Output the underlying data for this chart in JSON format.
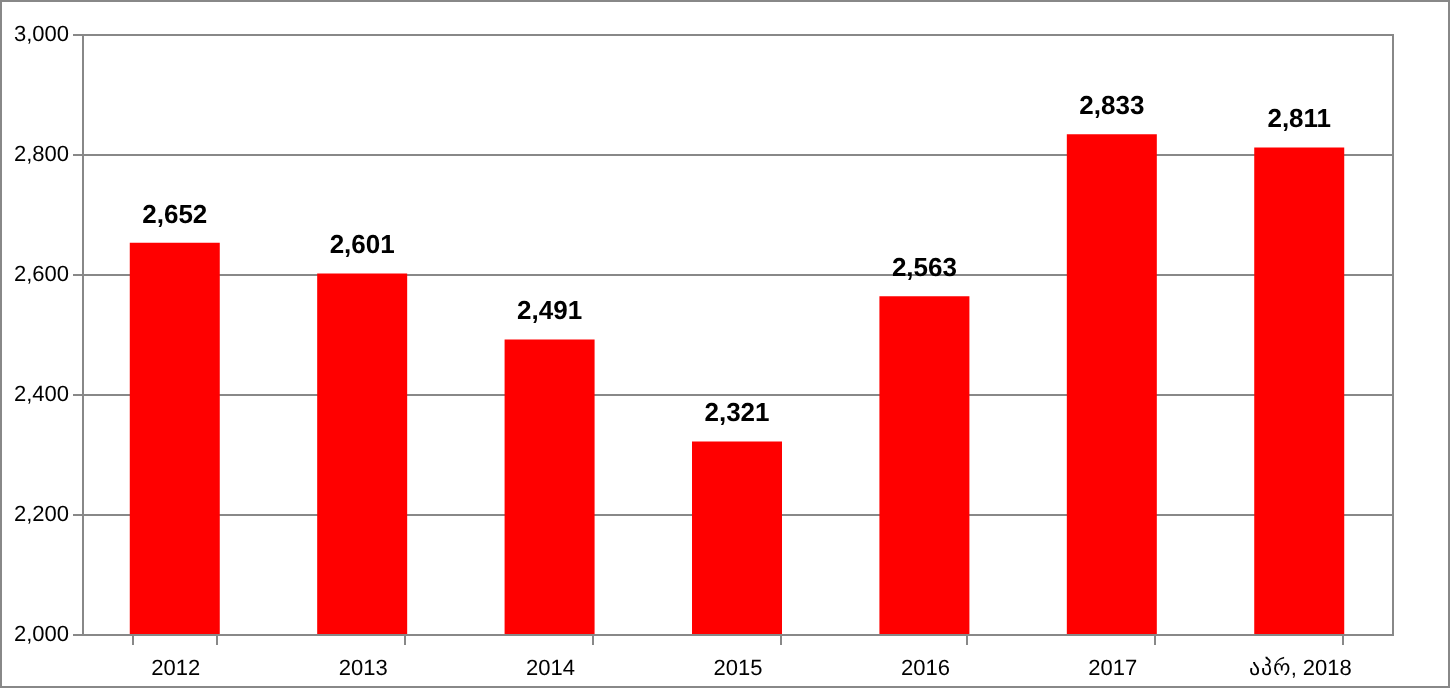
{
  "chart_data": {
    "type": "bar",
    "categories": [
      "2012",
      "2013",
      "2014",
      "2015",
      "2016",
      "2017",
      "აპრ, 2018"
    ],
    "values": [
      2652,
      2601,
      2491,
      2321,
      2563,
      2833,
      2811
    ],
    "color": "#ff0000",
    "ylim": [
      2000,
      3000
    ],
    "yticks": [
      {
        "value": 2000,
        "label": "2,000"
      },
      {
        "value": 2200,
        "label": "2,200"
      },
      {
        "value": 2400,
        "label": "2,400"
      },
      {
        "value": 2600,
        "label": "2,600"
      },
      {
        "value": 2800,
        "label": "2,800"
      },
      {
        "value": 3000,
        "label": "3,000"
      }
    ],
    "grid": "y",
    "data_labels": true,
    "value_labels": [
      "2,652",
      "2,601",
      "2,491",
      "2,321",
      "2,563",
      "2,833",
      "2,811"
    ]
  }
}
